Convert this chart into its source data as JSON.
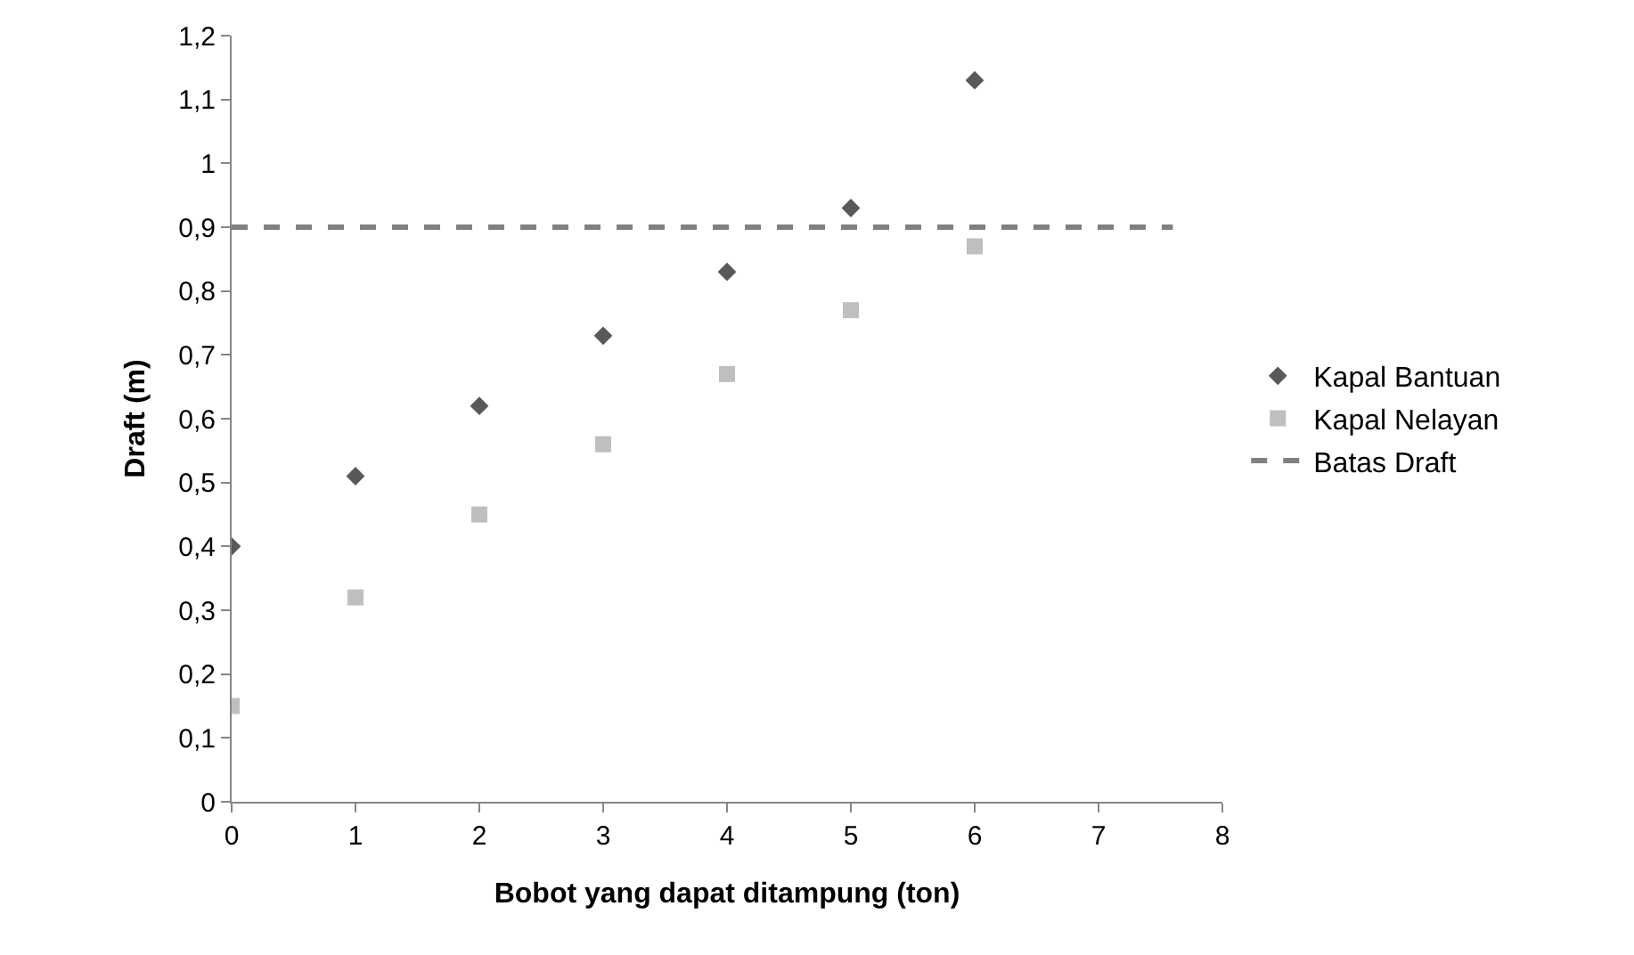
{
  "chart_data": {
    "type": "scatter",
    "xlabel": "Bobot yang dapat ditampung (ton)",
    "ylabel": "Draft (m)",
    "x": [
      0,
      1,
      2,
      3,
      4,
      5,
      6
    ],
    "series": [
      {
        "name": "Kapal Bantuan",
        "color": "#595959",
        "marker": "diamond",
        "values": [
          0.4,
          0.51,
          0.62,
          0.73,
          0.83,
          0.93,
          1.13
        ]
      },
      {
        "name": "Kapal Nelayan",
        "color": "#bfbfbf",
        "marker": "square",
        "values": [
          0.15,
          0.32,
          0.45,
          0.56,
          0.67,
          0.77,
          0.87
        ]
      },
      {
        "name": "Batas Draft",
        "type": "line",
        "color": "#808080",
        "marker": "none",
        "line_style": "dashed",
        "x": [
          0,
          7.6
        ],
        "values": [
          0.9,
          0.9
        ]
      }
    ],
    "xlim": [
      0,
      8
    ],
    "xticks": [
      0,
      1,
      2,
      3,
      4,
      5,
      6,
      7,
      8
    ],
    "ylim": [
      0,
      1.2
    ],
    "yticks": [
      0,
      {
        "value": 0.1,
        "label": "0,1"
      },
      {
        "value": 0.2,
        "label": "0,2"
      },
      {
        "value": 0.3,
        "label": "0,3"
      },
      {
        "value": 0.4,
        "label": "0,4"
      },
      {
        "value": 0.5,
        "label": "0,5"
      },
      {
        "value": 0.6,
        "label": "0,6"
      },
      {
        "value": 0.7,
        "label": "0,7"
      },
      {
        "value": 0.8,
        "label": "0,8"
      },
      {
        "value": 0.9,
        "label": "0,9"
      },
      1,
      {
        "value": 1.1,
        "label": "1,1"
      },
      {
        "value": 1.2,
        "label": "1,2"
      }
    ],
    "legend": "right"
  }
}
